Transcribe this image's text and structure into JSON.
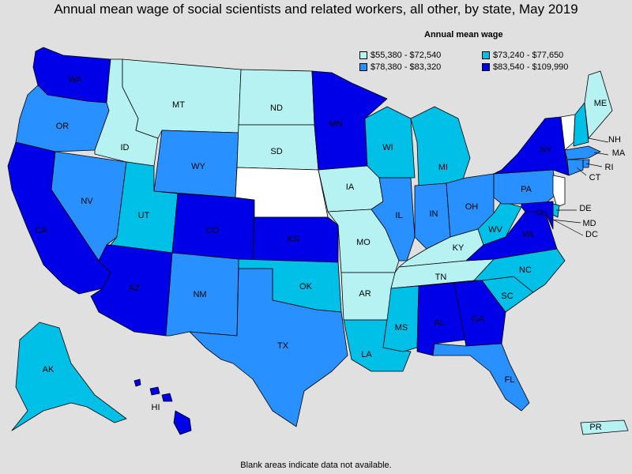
{
  "title": "Annual mean wage of social scientists and related workers, all other, by state, May 2019",
  "legend": {
    "title": "Annual mean wage",
    "bins": [
      {
        "label": "$55,380 - $72,540",
        "color": "#b7f2f2"
      },
      {
        "label": "$73,240 - $77,650",
        "color": "#00c0e8"
      },
      {
        "label": "$78,380 - $83,320",
        "color": "#2990ff"
      },
      {
        "label": "$83,540 - $109,990",
        "color": "#0000e8"
      }
    ]
  },
  "nodata_color": "#ffffff",
  "footnote": "Blank areas indicate data not available.",
  "states": {
    "WA": 3,
    "OR": 2,
    "CA": 3,
    "NV": 2,
    "ID": 0,
    "MT": 0,
    "WY": 2,
    "UT": 1,
    "AZ": 3,
    "CO": 3,
    "NM": 2,
    "ND": 0,
    "SD": 0,
    "NE": -1,
    "KS": 3,
    "OK": 1,
    "TX": 2,
    "MN": 3,
    "IA": 0,
    "MO": 0,
    "AR": 0,
    "LA": 1,
    "WI": 1,
    "IL": 2,
    "MI": 1,
    "IN": 2,
    "OH": 2,
    "KY": 0,
    "TN": 0,
    "MS": 1,
    "AL": 3,
    "GA": 3,
    "FL": 2,
    "SC": 1,
    "NC": 1,
    "VA": 3,
    "WV": 1,
    "PA": 2,
    "NY": 3,
    "VT": -1,
    "NH": 1,
    "ME": 0,
    "MA": 2,
    "RI": 2,
    "CT": 2,
    "NJ": -1,
    "DE": 1,
    "MD": 3,
    "DC": 3,
    "AK": 1,
    "HI": 3,
    "PR": 0
  },
  "labels": {
    "WA": "WA",
    "OR": "OR",
    "CA": "CA",
    "NV": "NV",
    "ID": "ID",
    "MT": "MT",
    "WY": "WY",
    "UT": "UT",
    "AZ": "AZ",
    "CO": "CO",
    "NM": "NM",
    "ND": "ND",
    "SD": "SD",
    "KS": "KS",
    "OK": "OK",
    "TX": "TX",
    "MN": "MN",
    "IA": "IA",
    "MO": "MO",
    "AR": "AR",
    "LA": "LA",
    "WI": "WI",
    "IL": "IL",
    "MI": "MI",
    "IN": "IN",
    "OH": "OH",
    "KY": "KY",
    "TN": "TN",
    "MS": "MS",
    "AL": "AL",
    "GA": "GA",
    "FL": "FL",
    "SC": "SC",
    "NC": "NC",
    "VA": "VA",
    "WV": "WV",
    "PA": "PA",
    "NY": "NY",
    "NH": "NH",
    "ME": "ME",
    "MA": "MA",
    "RI": "RI",
    "CT": "CT",
    "DE": "DE",
    "MD": "MD",
    "DC": "DC",
    "AK": "AK",
    "HI": "HI",
    "PR": "PR"
  }
}
